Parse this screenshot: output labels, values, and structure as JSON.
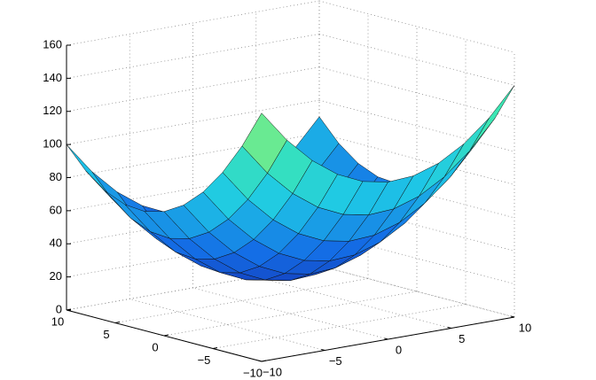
{
  "chart_data": {
    "type": "surface",
    "x": [
      -10,
      -8,
      -6,
      -4,
      -2,
      0,
      2,
      4,
      6,
      8,
      10
    ],
    "y": [
      -10,
      -8,
      -6,
      -4,
      -2,
      0,
      2,
      4,
      6,
      8,
      10
    ],
    "z": [
      [
        150,
        127,
        108,
        93,
        82,
        75,
        72,
        73,
        78,
        87,
        100
      ],
      [
        131,
        108,
        89,
        74,
        63,
        56,
        53,
        54,
        59,
        68,
        81
      ],
      [
        116,
        93,
        74,
        59,
        48,
        41,
        38,
        39,
        44,
        53,
        66
      ],
      [
        105,
        82,
        63,
        48,
        37,
        30,
        27,
        28,
        33,
        42,
        55
      ],
      [
        98,
        75,
        56,
        41,
        30,
        23,
        20,
        21,
        26,
        35,
        48
      ],
      [
        95,
        72,
        53,
        38,
        27,
        20,
        17,
        18,
        23,
        32,
        45
      ],
      [
        96,
        73,
        54,
        39,
        28,
        21,
        18,
        19,
        24,
        33,
        46
      ],
      [
        101,
        78,
        59,
        44,
        33,
        26,
        23,
        24,
        29,
        38,
        51
      ],
      [
        110,
        87,
        68,
        53,
        42,
        35,
        32,
        33,
        38,
        47,
        60
      ],
      [
        123,
        100,
        81,
        66,
        55,
        48,
        45,
        46,
        51,
        60,
        73
      ],
      [
        140,
        117,
        98,
        83,
        72,
        65,
        62,
        63,
        68,
        77,
        90
      ]
    ],
    "xlim": [
      -10,
      10
    ],
    "ylim": [
      -10,
      10
    ],
    "zlim": [
      0,
      160
    ],
    "xticks": [
      {
        "value": -10,
        "label": "−10"
      },
      {
        "value": -5,
        "label": "−5"
      },
      0,
      5,
      10
    ],
    "yticks": [
      {
        "value": -10,
        "label": "−10"
      },
      {
        "value": -5,
        "label": "−5"
      },
      0,
      5,
      10
    ],
    "zticks": [
      0,
      20,
      40,
      60,
      80,
      100,
      120,
      140,
      160
    ],
    "grid": true
  }
}
